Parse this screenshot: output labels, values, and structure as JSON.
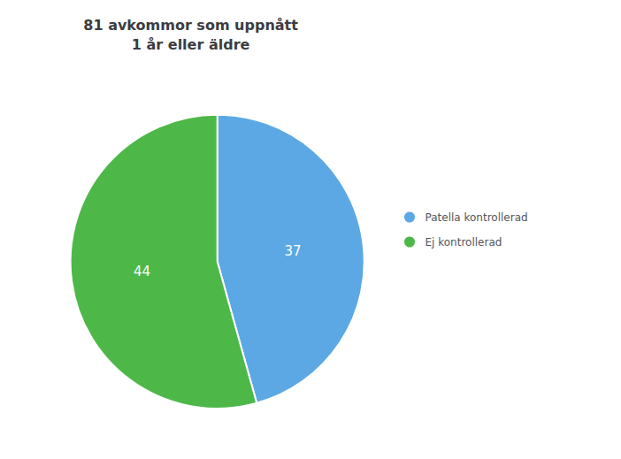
{
  "chart_data": {
    "type": "pie",
    "title": "81 avkommor som uppnått\n1 år eller äldre",
    "categories": [
      "Patella kontrollerad",
      "Ej kontrollerad"
    ],
    "values": [
      37,
      44
    ],
    "colors": [
      "#5BA8E5",
      "#4DB848"
    ],
    "data_labels": true,
    "legend": "right"
  }
}
